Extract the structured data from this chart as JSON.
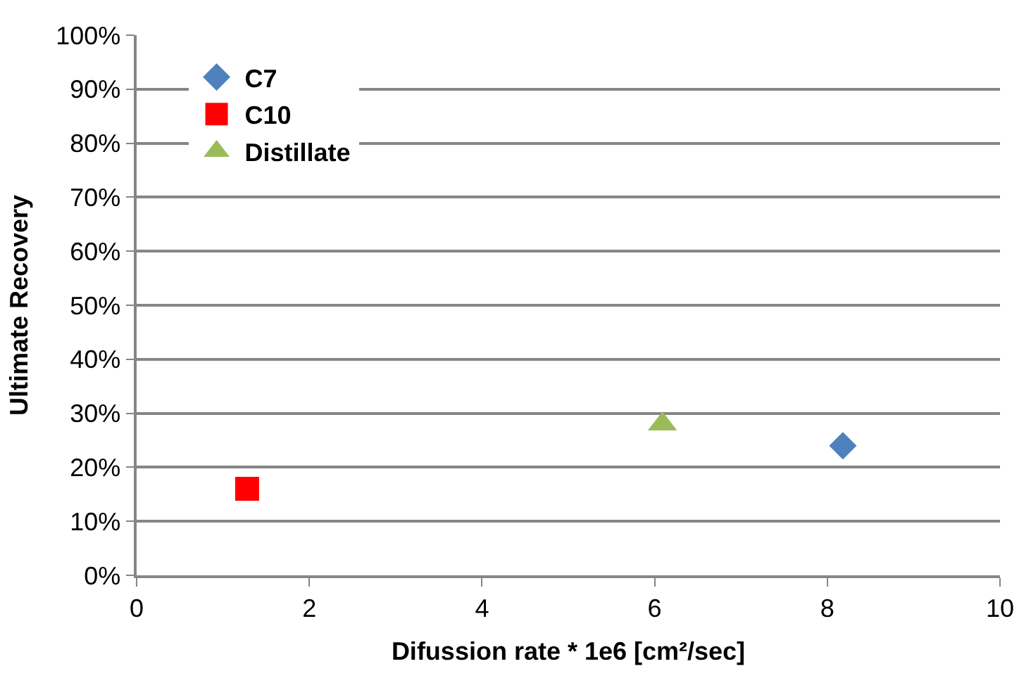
{
  "chart_data": {
    "type": "scatter",
    "xlabel": "Difussion rate * 1e6 [cm²/sec]",
    "ylabel": "Ultimate Recovery",
    "series": [
      {
        "name": "C7",
        "color": "#4f81bd",
        "marker": "diamond",
        "x": [
          8.18
        ],
        "values": [
          24
        ]
      },
      {
        "name": "C10",
        "color": "#ff0000",
        "marker": "square",
        "x": [
          1.28
        ],
        "values": [
          16
        ]
      },
      {
        "name": "Distillate",
        "color": "#9bbb59",
        "marker": "triangle",
        "x": [
          6.09
        ],
        "values": [
          28
        ]
      }
    ],
    "xlim": [
      0,
      10
    ],
    "xticks": [
      0,
      2,
      4,
      6,
      8,
      10
    ],
    "ylim": [
      0,
      100
    ],
    "yticks": [
      {
        "value": 0,
        "label": "0%"
      },
      {
        "value": 10,
        "label": "10%"
      },
      {
        "value": 20,
        "label": "20%"
      },
      {
        "value": 30,
        "label": "30%"
      },
      {
        "value": 40,
        "label": "40%"
      },
      {
        "value": 50,
        "label": "50%"
      },
      {
        "value": 60,
        "label": "60%"
      },
      {
        "value": 70,
        "label": "70%"
      },
      {
        "value": 80,
        "label": "80%"
      },
      {
        "value": 90,
        "label": "90%"
      },
      {
        "value": 100,
        "label": "100%"
      }
    ],
    "grid": "y",
    "legend": "top left"
  }
}
